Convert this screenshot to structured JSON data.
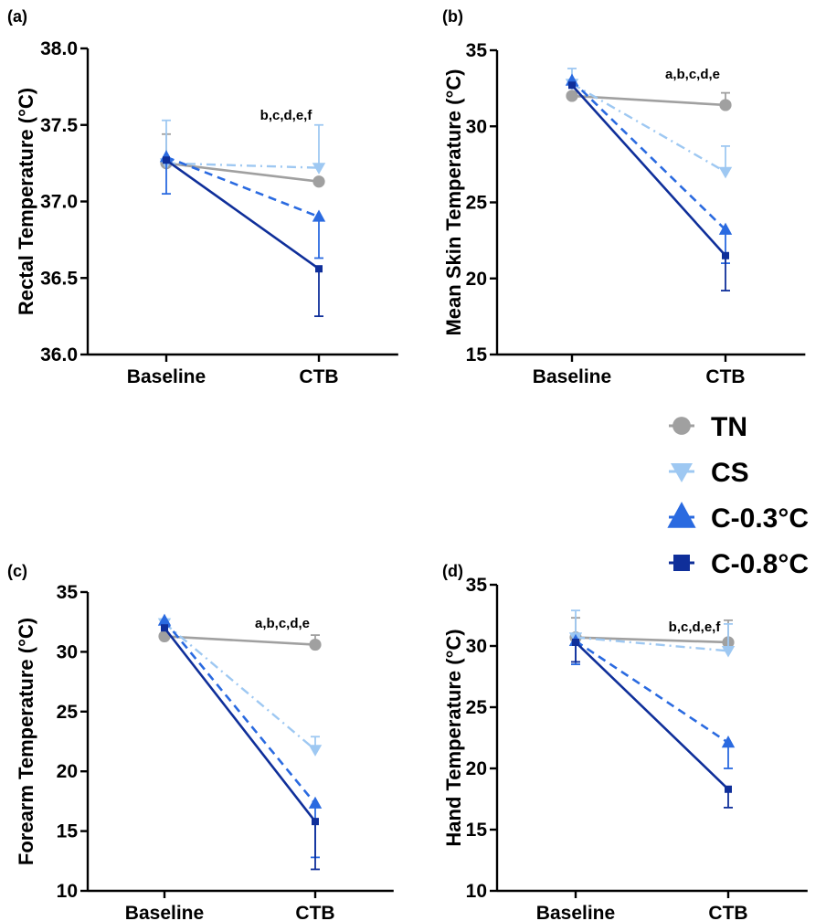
{
  "chart_data": [
    {
      "type": "line",
      "panel": "(a)",
      "categories": [
        "Baseline",
        "CTB"
      ],
      "ylabel": "Rectal Temperature (°C)",
      "xlabel": "",
      "ylim": [
        36.0,
        38.0
      ],
      "yticks": [
        36.0,
        36.5,
        37.0,
        37.5,
        38.0
      ],
      "ytick_labels": [
        "36.0",
        "36.5",
        "37.0",
        "37.5",
        "38.0"
      ],
      "annotation": "b,c,d,e,f",
      "series": [
        {
          "name": "TN",
          "values": [
            37.25,
            37.13
          ],
          "err_upper": [
            37.44,
            null
          ],
          "err_lower": [
            null,
            null
          ]
        },
        {
          "name": "CS",
          "values": [
            37.25,
            37.22
          ],
          "err_upper": [
            37.53,
            37.5
          ],
          "err_lower": [
            null,
            null
          ]
        },
        {
          "name": "C-0.3°C",
          "values": [
            37.29,
            36.9
          ],
          "err_upper": [
            null,
            null
          ],
          "err_lower": [
            37.05,
            36.63
          ]
        },
        {
          "name": "C-0.8°C",
          "values": [
            37.27,
            36.56
          ],
          "err_upper": [
            null,
            null
          ],
          "err_lower": [
            null,
            36.25
          ]
        }
      ]
    },
    {
      "type": "line",
      "panel": "(b)",
      "categories": [
        "Baseline",
        "CTB"
      ],
      "ylabel": "Mean Skin Temperature (°C)",
      "xlabel": "",
      "ylim": [
        15,
        35
      ],
      "yticks": [
        15,
        20,
        25,
        30,
        35
      ],
      "ytick_labels": [
        "15",
        "20",
        "25",
        "30",
        "35"
      ],
      "annotation": "a,b,c,d,e",
      "series": [
        {
          "name": "TN",
          "values": [
            32.0,
            31.4
          ],
          "err_upper": [
            null,
            32.2
          ],
          "err_lower": [
            null,
            null
          ]
        },
        {
          "name": "CS",
          "values": [
            32.8,
            27.0
          ],
          "err_upper": [
            33.8,
            28.7
          ],
          "err_lower": [
            null,
            null
          ]
        },
        {
          "name": "C-0.3°C",
          "values": [
            33.0,
            23.2
          ],
          "err_upper": [
            null,
            null
          ],
          "err_lower": [
            null,
            21.0
          ]
        },
        {
          "name": "C-0.8°C",
          "values": [
            32.7,
            21.5
          ],
          "err_upper": [
            null,
            null
          ],
          "err_lower": [
            null,
            19.2
          ]
        }
      ]
    },
    {
      "type": "line",
      "panel": "(c)",
      "categories": [
        "Baseline",
        "CTB"
      ],
      "ylabel": "Forearm Temperature (°C)",
      "xlabel": "",
      "ylim": [
        10,
        35
      ],
      "yticks": [
        10,
        15,
        20,
        25,
        30,
        35
      ],
      "ytick_labels": [
        "10",
        "15",
        "20",
        "25",
        "30",
        "35"
      ],
      "annotation": "a,b,c,d,e",
      "series": [
        {
          "name": "TN",
          "values": [
            31.3,
            30.6
          ],
          "err_upper": [
            null,
            31.4
          ],
          "err_lower": [
            null,
            null
          ]
        },
        {
          "name": "CS",
          "values": [
            32.4,
            21.8
          ],
          "err_upper": [
            null,
            22.9
          ],
          "err_lower": [
            null,
            null
          ]
        },
        {
          "name": "C-0.3°C",
          "values": [
            32.6,
            17.3
          ],
          "err_upper": [
            null,
            null
          ],
          "err_lower": [
            null,
            12.8
          ]
        },
        {
          "name": "C-0.8°C",
          "values": [
            32.0,
            15.8
          ],
          "err_upper": [
            null,
            null
          ],
          "err_lower": [
            null,
            11.8
          ]
        }
      ]
    },
    {
      "type": "line",
      "panel": "(d)",
      "categories": [
        "Baseline",
        "CTB"
      ],
      "ylabel": "Hand Temperature (°C)",
      "xlabel": "",
      "ylim": [
        10,
        35
      ],
      "yticks": [
        10,
        15,
        20,
        25,
        30,
        35
      ],
      "ytick_labels": [
        "10",
        "15",
        "20",
        "25",
        "30",
        "35"
      ],
      "annotation": "b,c,d,e,f",
      "series": [
        {
          "name": "TN",
          "values": [
            30.7,
            30.3
          ],
          "err_upper": [
            32.3,
            32.1
          ],
          "err_lower": [
            null,
            null
          ]
        },
        {
          "name": "CS",
          "values": [
            30.7,
            29.6
          ],
          "err_upper": [
            32.9,
            31.8
          ],
          "err_lower": [
            null,
            null
          ]
        },
        {
          "name": "C-0.3°C",
          "values": [
            30.4,
            22.1
          ],
          "err_upper": [
            null,
            null
          ],
          "err_lower": [
            28.5,
            20.0
          ]
        },
        {
          "name": "C-0.8°C",
          "values": [
            30.3,
            18.3
          ],
          "err_upper": [
            null,
            null
          ],
          "err_lower": [
            28.7,
            16.8
          ]
        }
      ]
    }
  ],
  "legend": {
    "placement": "right-middle",
    "entries": [
      {
        "label": "TN",
        "color": "#a0a0a0",
        "marker": "circle",
        "dash": "solid"
      },
      {
        "label": "CS",
        "color": "#9ec8f2",
        "marker": "triangle-down",
        "dash": "dash-dot"
      },
      {
        "label": "C-0.3°C",
        "color": "#2a6ae0",
        "marker": "triangle-up",
        "dash": "dashed"
      },
      {
        "label": "C-0.8°C",
        "color": "#0f2f9a",
        "marker": "square",
        "dash": "solid"
      }
    ]
  }
}
